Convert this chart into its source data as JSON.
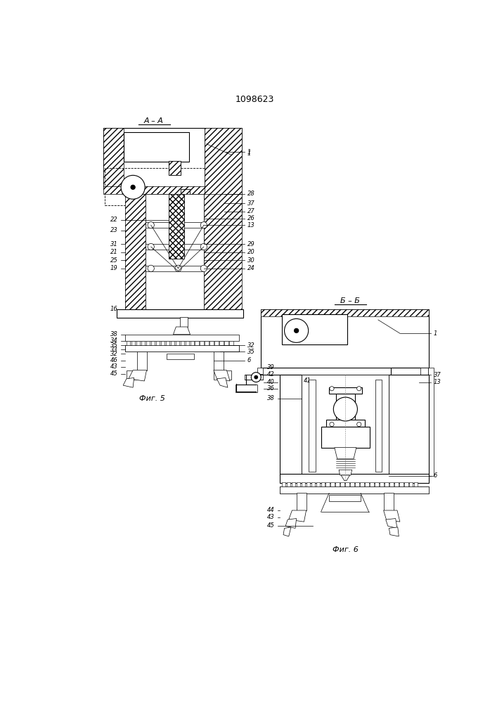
{
  "title": "1098623",
  "background": "#ffffff",
  "line_color": "#000000",
  "fig_label_A": "A – A",
  "fig_label_B": "Б – Б",
  "fig5_label": "Фиг. 5",
  "fig6_label": "Фиг. 6"
}
